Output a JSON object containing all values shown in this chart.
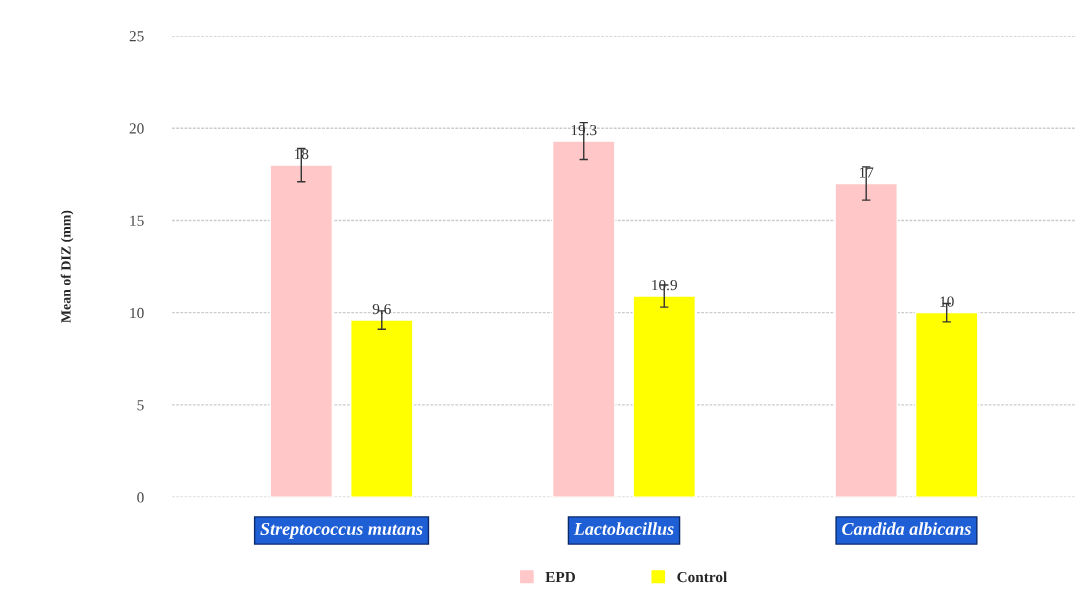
{
  "chart_data": {
    "type": "bar",
    "ylabel": "Mean of DIZ (mm)",
    "categories": [
      "Streptococcus mutans",
      "Lactobacillus",
      "Candida albicans"
    ],
    "series": [
      {
        "name": "EPD",
        "color": "#ffc7c7",
        "values": [
          18,
          19.3,
          17
        ],
        "errors": [
          0.9,
          1.0,
          0.9
        ]
      },
      {
        "name": "Control",
        "color": "#ffff00",
        "values": [
          9.6,
          10.9,
          10
        ],
        "errors": [
          0.5,
          0.6,
          0.5
        ]
      }
    ],
    "ylim": [
      0,
      25
    ],
    "yticks": [
      0,
      5,
      10,
      15,
      20,
      25
    ],
    "grid": "y",
    "legend": "bottom",
    "data_labels": true
  }
}
